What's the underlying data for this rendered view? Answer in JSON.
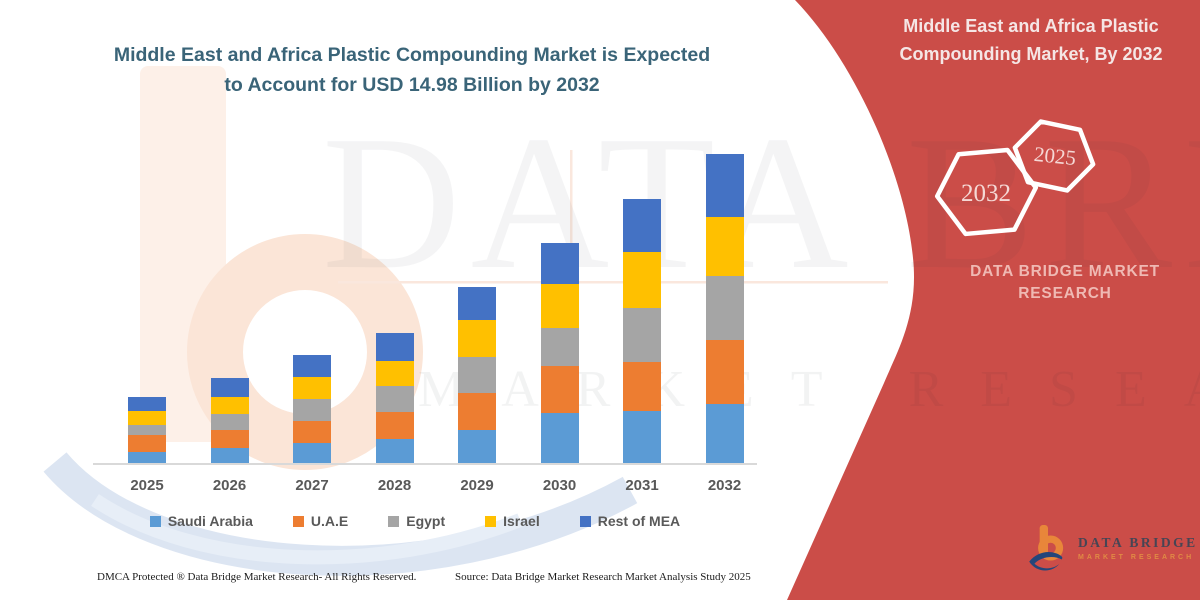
{
  "page": {
    "chart_title_line1": "Middle East and Africa Plastic Compounding Market is Expected",
    "chart_title_line2": "to Account for USD 14.98 Billion by 2032",
    "footer_left": "DMCA Protected ® Data Bridge Market Research-  All Rights Reserved.",
    "footer_source": "Source: Data Bridge Market Research  Market Analysis Study 2025"
  },
  "side_panel": {
    "title_line1": "Middle East and Africa Plastic",
    "title_line2": "Compounding Market, By 2032",
    "hexagon_large_label": "2032",
    "hexagon_small_label": "2025",
    "brand_line1": "DATA BRIDGE MARKET",
    "brand_line2": "RESEARCH",
    "background_color": "#CB4D48"
  },
  "logo": {
    "text_primary": "DATA BRIDGE",
    "text_secondary": "MARKET RESEARCH",
    "icon_orange": "#E8863A",
    "icon_navy": "#24467A"
  },
  "watermark": {
    "line1": "DATA BRIDGE",
    "line2": "MARKET RESEARCH"
  },
  "chart_data": {
    "type": "bar",
    "stacked": true,
    "title": "Middle East and Africa Plastic Compounding Market is Expected to Account for USD 14.98 Billion by 2032",
    "unit": "USD Billion",
    "categories": [
      "2025",
      "2026",
      "2027",
      "2028",
      "2029",
      "2030",
      "2031",
      "2032"
    ],
    "series": [
      {
        "name": "Saudi Arabia",
        "color": "#5B9BD5",
        "values": [
          0.6,
          0.75,
          1.0,
          1.2,
          1.65,
          2.45,
          2.55,
          2.9
        ]
      },
      {
        "name": "U.A.E",
        "color": "#ED7D31",
        "values": [
          0.8,
          0.9,
          1.1,
          1.3,
          1.8,
          2.3,
          2.4,
          3.1
        ]
      },
      {
        "name": "Egypt",
        "color": "#A5A5A5",
        "values": [
          0.5,
          0.75,
          1.05,
          1.25,
          1.7,
          1.8,
          2.6,
          3.1
        ]
      },
      {
        "name": "Israel",
        "color": "#FFC000",
        "values": [
          0.65,
          0.85,
          1.05,
          1.25,
          1.8,
          2.15,
          2.7,
          2.85
        ]
      },
      {
        "name": "Rest of MEA",
        "color": "#4472C4",
        "values": [
          0.7,
          0.9,
          1.08,
          1.35,
          1.6,
          2.0,
          2.55,
          3.03
        ]
      }
    ],
    "totals": [
      3.25,
      4.15,
      5.28,
      6.35,
      8.55,
      10.7,
      12.8,
      14.98
    ],
    "highlight_value_2032": 14.98,
    "legend_position": "bottom",
    "gridlines": false,
    "y_axis_visible": false
  }
}
